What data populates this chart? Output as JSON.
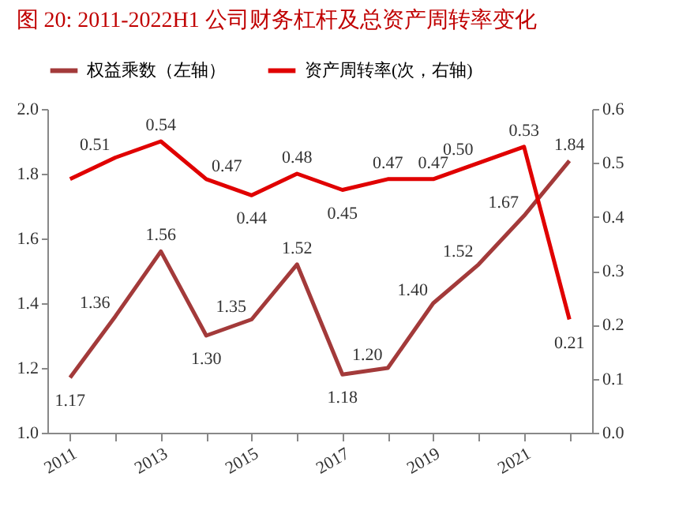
{
  "chart_data": {
    "type": "line",
    "title": "图 20:   2011-2022H1 公司财务杠杆及总资产周转率变化",
    "categories": [
      "2011",
      null,
      "2013",
      null,
      "2015",
      null,
      "2017",
      null,
      "2019",
      null,
      "2021",
      null
    ],
    "series": [
      {
        "name": "权益乘数（左轴）",
        "color": "#a33a3a",
        "values": [
          1.17,
          1.36,
          1.56,
          1.3,
          1.35,
          1.52,
          1.18,
          1.2,
          1.4,
          1.52,
          1.67,
          1.84
        ],
        "value_labels": [
          "1.17",
          "1.36",
          "1.56",
          "1.30",
          "1.35",
          "1.52",
          "1.18",
          "1.20",
          "1.40",
          "1.52",
          "1.67",
          "1.84"
        ]
      },
      {
        "name": "资产周转率(次，右轴)",
        "color": "#e00000",
        "axis": "y2",
        "values": [
          0.47,
          0.51,
          0.54,
          0.47,
          0.44,
          0.48,
          0.45,
          0.47,
          0.47,
          0.5,
          0.53,
          0.21
        ],
        "value_labels": [
          null,
          "0.51",
          "0.54",
          "0.47",
          "0.44",
          "0.48",
          "0.45",
          "0.47",
          "0.47",
          "0.50",
          "0.53",
          "0.21"
        ]
      }
    ],
    "ylim": [
      1.0,
      2.0
    ],
    "yticks": [
      {
        "value": 1,
        "label": "1.0"
      },
      {
        "value": 1.2,
        "label": "1.2"
      },
      {
        "value": 1.4,
        "label": "1.4"
      },
      {
        "value": 1.6,
        "label": "1.6"
      },
      {
        "value": 1.8,
        "label": "1.8"
      },
      {
        "value": 2,
        "label": "2.0"
      }
    ],
    "y2lim": [
      0,
      0.6
    ],
    "y2ticks": [
      {
        "value": 0,
        "label": "0.0"
      },
      0.1,
      0.2,
      0.3,
      0.4,
      0.5,
      0.6
    ],
    "legend": "top",
    "marker": "none",
    "line_style": "solid"
  }
}
